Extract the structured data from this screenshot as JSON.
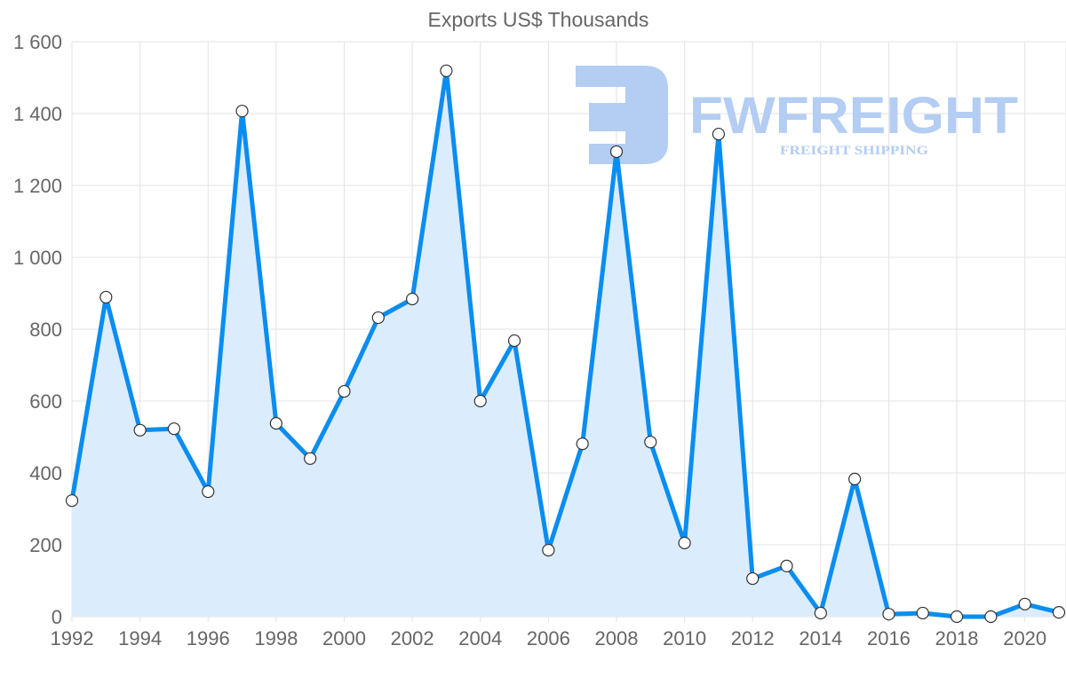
{
  "chart_data": {
    "type": "line",
    "title": "Exports US$ Thousands",
    "xlabel": "",
    "ylabel": "",
    "x": [
      1992,
      1993,
      1994,
      1995,
      1996,
      1997,
      1998,
      1999,
      2000,
      2001,
      2002,
      2003,
      2004,
      2005,
      2006,
      2007,
      2008,
      2009,
      2010,
      2011,
      2012,
      2013,
      2014,
      2015,
      2016,
      2017,
      2018,
      2019,
      2020,
      2021
    ],
    "series": [
      {
        "name": "Exports US$ Thousands",
        "values": [
          323,
          889,
          519,
          523,
          348,
          1407,
          538,
          440,
          627,
          832,
          884,
          1519,
          600,
          768,
          185,
          481,
          1294,
          486,
          205,
          1343,
          106,
          141,
          10,
          383,
          7,
          10,
          0,
          0,
          35,
          12
        ],
        "color": "#0a8df0",
        "fill": "#dbecfc"
      }
    ],
    "ylim": [
      0,
      1600
    ],
    "xlim": [
      1992,
      2021
    ],
    "yticks": [
      0,
      200,
      400,
      600,
      800,
      1000,
      1200,
      1400,
      1600
    ],
    "ytick_labels": [
      "0",
      "200",
      "400",
      "600",
      "800",
      "1 000",
      "1 200",
      "1 400",
      "1 600"
    ],
    "xticks": [
      1992,
      1994,
      1996,
      1998,
      2000,
      2002,
      2004,
      2006,
      2008,
      2010,
      2012,
      2014,
      2016,
      2018,
      2020
    ],
    "xtick_labels": [
      "1992",
      "1994",
      "1996",
      "1998",
      "2000",
      "2002",
      "2004",
      "2006",
      "2008",
      "2010",
      "2012",
      "2014",
      "2016",
      "2018",
      "2020"
    ],
    "grid": true,
    "legend": "none"
  },
  "watermark": {
    "brand": "FWFREIGHT",
    "tagline": "FREIGHT SHIPPING",
    "color": "#b3cdf3"
  }
}
